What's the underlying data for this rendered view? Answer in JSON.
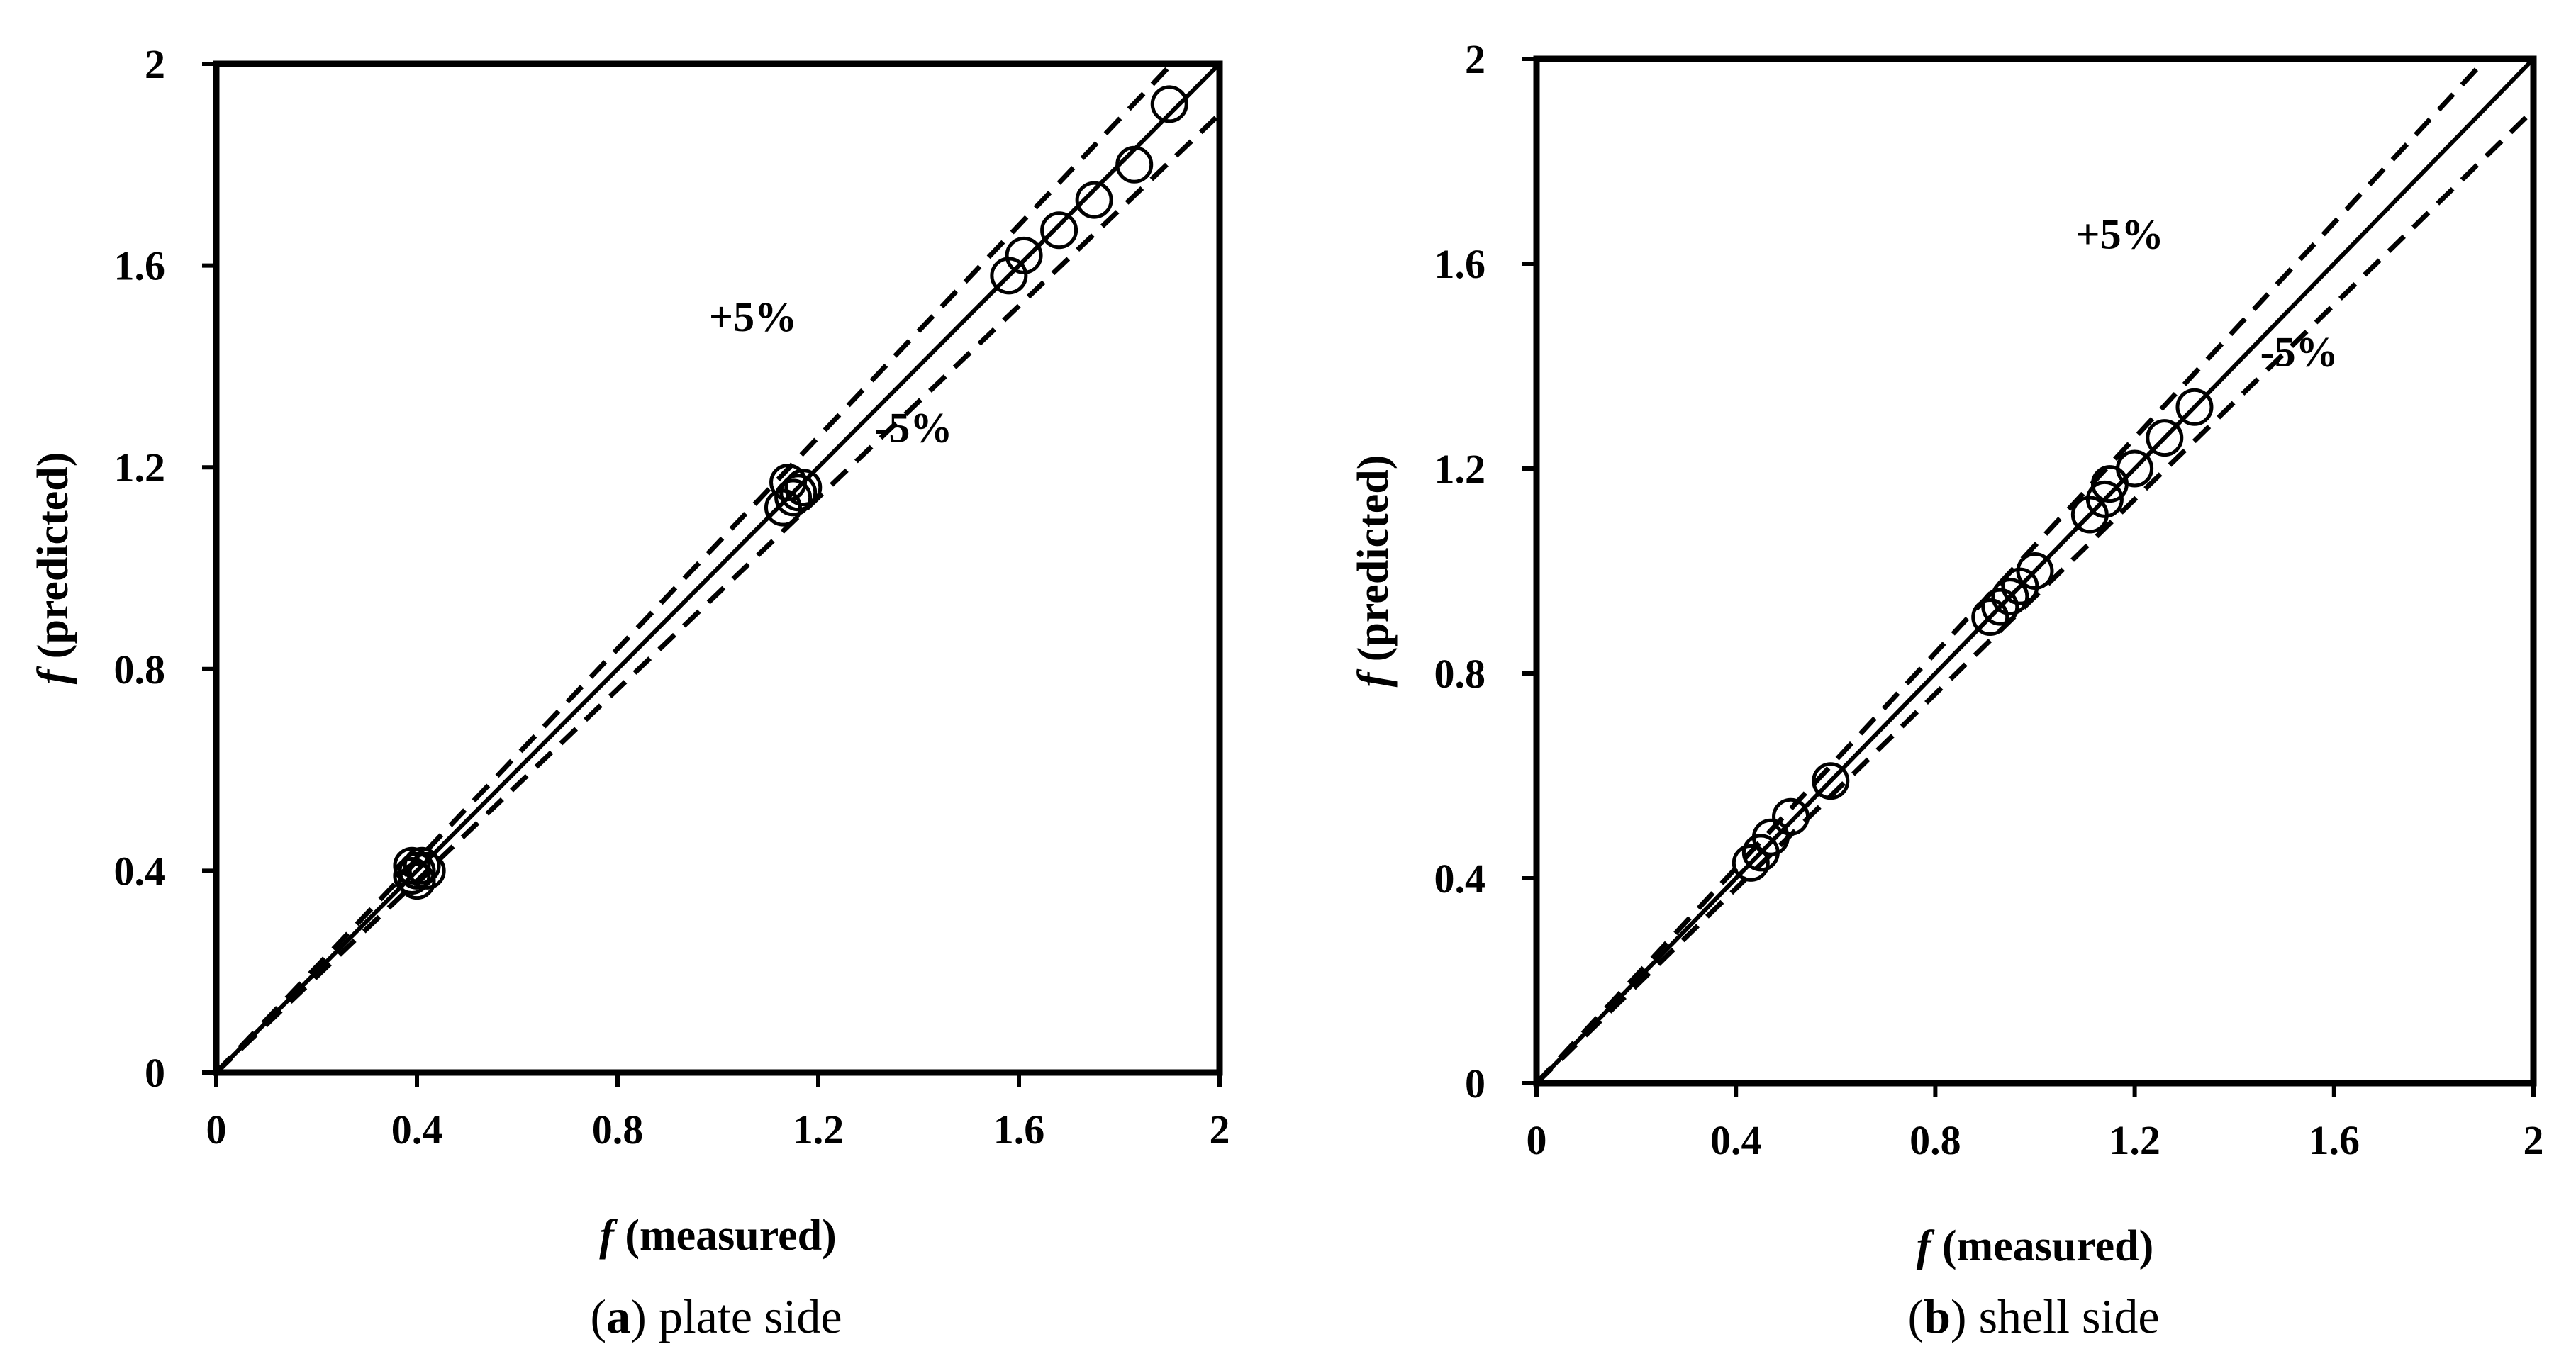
{
  "chart_data": [
    {
      "type": "scatter",
      "panel_letter": "a",
      "caption_text": " plate side",
      "x_var": "f",
      "xlabel": " (measured)",
      "y_var": "f",
      "ylabel": " (predicted)",
      "xlim": [
        0,
        2
      ],
      "ylim": [
        0,
        2
      ],
      "x_ticks": [
        "0",
        "0.4",
        "0.8",
        "1.2",
        "1.6",
        "2"
      ],
      "y_ticks": [
        "0",
        "0.4",
        "0.8",
        "1.2",
        "1.6",
        "2"
      ],
      "tick_values": [
        0,
        0.4,
        0.8,
        1.2,
        1.6,
        2
      ],
      "reference_lines": [
        {
          "name": "y = x",
          "slope": 1.0,
          "style": "solid"
        },
        {
          "name": "+5%",
          "slope": 1.05,
          "style": "dashed"
        },
        {
          "name": "-5%",
          "slope": 0.95,
          "style": "dashed"
        }
      ],
      "annotations": [
        {
          "text": "+5%",
          "x": 1.07,
          "y": 1.47
        },
        {
          "text": "-5%",
          "x": 1.39,
          "y": 1.25
        }
      ],
      "points": [
        {
          "x": 0.39,
          "y": 0.39
        },
        {
          "x": 0.4,
          "y": 0.4
        },
        {
          "x": 0.41,
          "y": 0.41
        },
        {
          "x": 0.4,
          "y": 0.38
        },
        {
          "x": 0.42,
          "y": 0.4
        },
        {
          "x": 0.39,
          "y": 0.41
        },
        {
          "x": 1.13,
          "y": 1.12
        },
        {
          "x": 1.15,
          "y": 1.14
        },
        {
          "x": 1.14,
          "y": 1.17
        },
        {
          "x": 1.16,
          "y": 1.15
        },
        {
          "x": 1.17,
          "y": 1.16
        },
        {
          "x": 1.58,
          "y": 1.58
        },
        {
          "x": 1.61,
          "y": 1.62
        },
        {
          "x": 1.68,
          "y": 1.67
        },
        {
          "x": 1.75,
          "y": 1.73
        },
        {
          "x": 1.83,
          "y": 1.8
        },
        {
          "x": 1.9,
          "y": 1.92
        }
      ]
    },
    {
      "type": "scatter",
      "panel_letter": "b",
      "caption_text": " shell side",
      "x_var": "f",
      "xlabel": " (measured)",
      "y_var": "f",
      "ylabel": " (predicted)",
      "xlim": [
        0,
        2
      ],
      "ylim": [
        0,
        2
      ],
      "x_ticks": [
        "0",
        "0.4",
        "0.8",
        "1.2",
        "1.6",
        "2"
      ],
      "y_ticks": [
        "0",
        "0.4",
        "0.8",
        "1.2",
        "1.6",
        "2"
      ],
      "tick_values": [
        0,
        0.4,
        0.8,
        1.2,
        1.6,
        2
      ],
      "reference_lines": [
        {
          "name": "y = x",
          "slope": 1.0,
          "style": "solid"
        },
        {
          "name": "+5%",
          "slope": 1.05,
          "style": "dashed"
        },
        {
          "name": "-5%",
          "slope": 0.95,
          "style": "dashed"
        }
      ],
      "annotations": [
        {
          "text": "+5%",
          "x": 1.17,
          "y": 1.63
        },
        {
          "text": "-5%",
          "x": 1.53,
          "y": 1.4
        }
      ],
      "points": [
        {
          "x": 0.43,
          "y": 0.43
        },
        {
          "x": 0.45,
          "y": 0.45
        },
        {
          "x": 0.47,
          "y": 0.48
        },
        {
          "x": 0.51,
          "y": 0.52
        },
        {
          "x": 0.59,
          "y": 0.59
        },
        {
          "x": 0.91,
          "y": 0.91
        },
        {
          "x": 0.93,
          "y": 0.93
        },
        {
          "x": 0.95,
          "y": 0.95
        },
        {
          "x": 0.97,
          "y": 0.97
        },
        {
          "x": 1.0,
          "y": 1.0
        },
        {
          "x": 1.11,
          "y": 1.11
        },
        {
          "x": 1.14,
          "y": 1.14
        },
        {
          "x": 1.15,
          "y": 1.17
        },
        {
          "x": 1.2,
          "y": 1.2
        },
        {
          "x": 1.26,
          "y": 1.26
        },
        {
          "x": 1.32,
          "y": 1.32
        }
      ]
    }
  ]
}
